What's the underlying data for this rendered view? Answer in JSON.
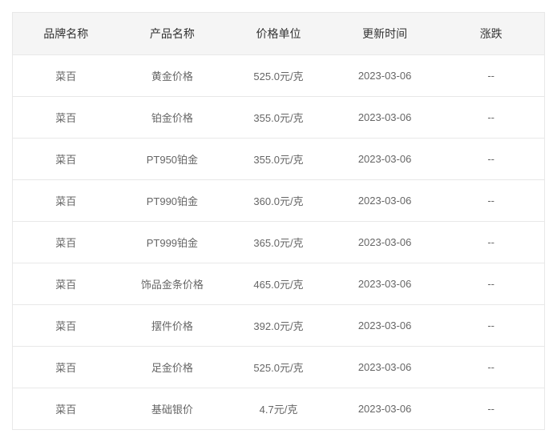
{
  "table": {
    "columns": [
      "品牌名称",
      "产品名称",
      "价格单位",
      "更新时间",
      "涨跌"
    ],
    "rows": [
      [
        "菜百",
        "黄金价格",
        "525.0元/克",
        "2023-03-06",
        "--"
      ],
      [
        "菜百",
        "铂金价格",
        "355.0元/克",
        "2023-03-06",
        "--"
      ],
      [
        "菜百",
        "PT950铂金",
        "355.0元/克",
        "2023-03-06",
        "--"
      ],
      [
        "菜百",
        "PT990铂金",
        "360.0元/克",
        "2023-03-06",
        "--"
      ],
      [
        "菜百",
        "PT999铂金",
        "365.0元/克",
        "2023-03-06",
        "--"
      ],
      [
        "菜百",
        "饰品金条价格",
        "465.0元/克",
        "2023-03-06",
        "--"
      ],
      [
        "菜百",
        "摆件价格",
        "392.0元/克",
        "2023-03-06",
        "--"
      ],
      [
        "菜百",
        "足金价格",
        "525.0元/克",
        "2023-03-06",
        "--"
      ],
      [
        "菜百",
        "基础银价",
        "4.7元/克",
        "2023-03-06",
        "--"
      ]
    ],
    "styling": {
      "header_background": "#f5f5f5",
      "header_text_color": "#333333",
      "cell_text_color": "#666666",
      "border_color": "#e8e8e8",
      "header_font_size": 14,
      "cell_font_size": 13,
      "background_color": "#ffffff"
    }
  }
}
